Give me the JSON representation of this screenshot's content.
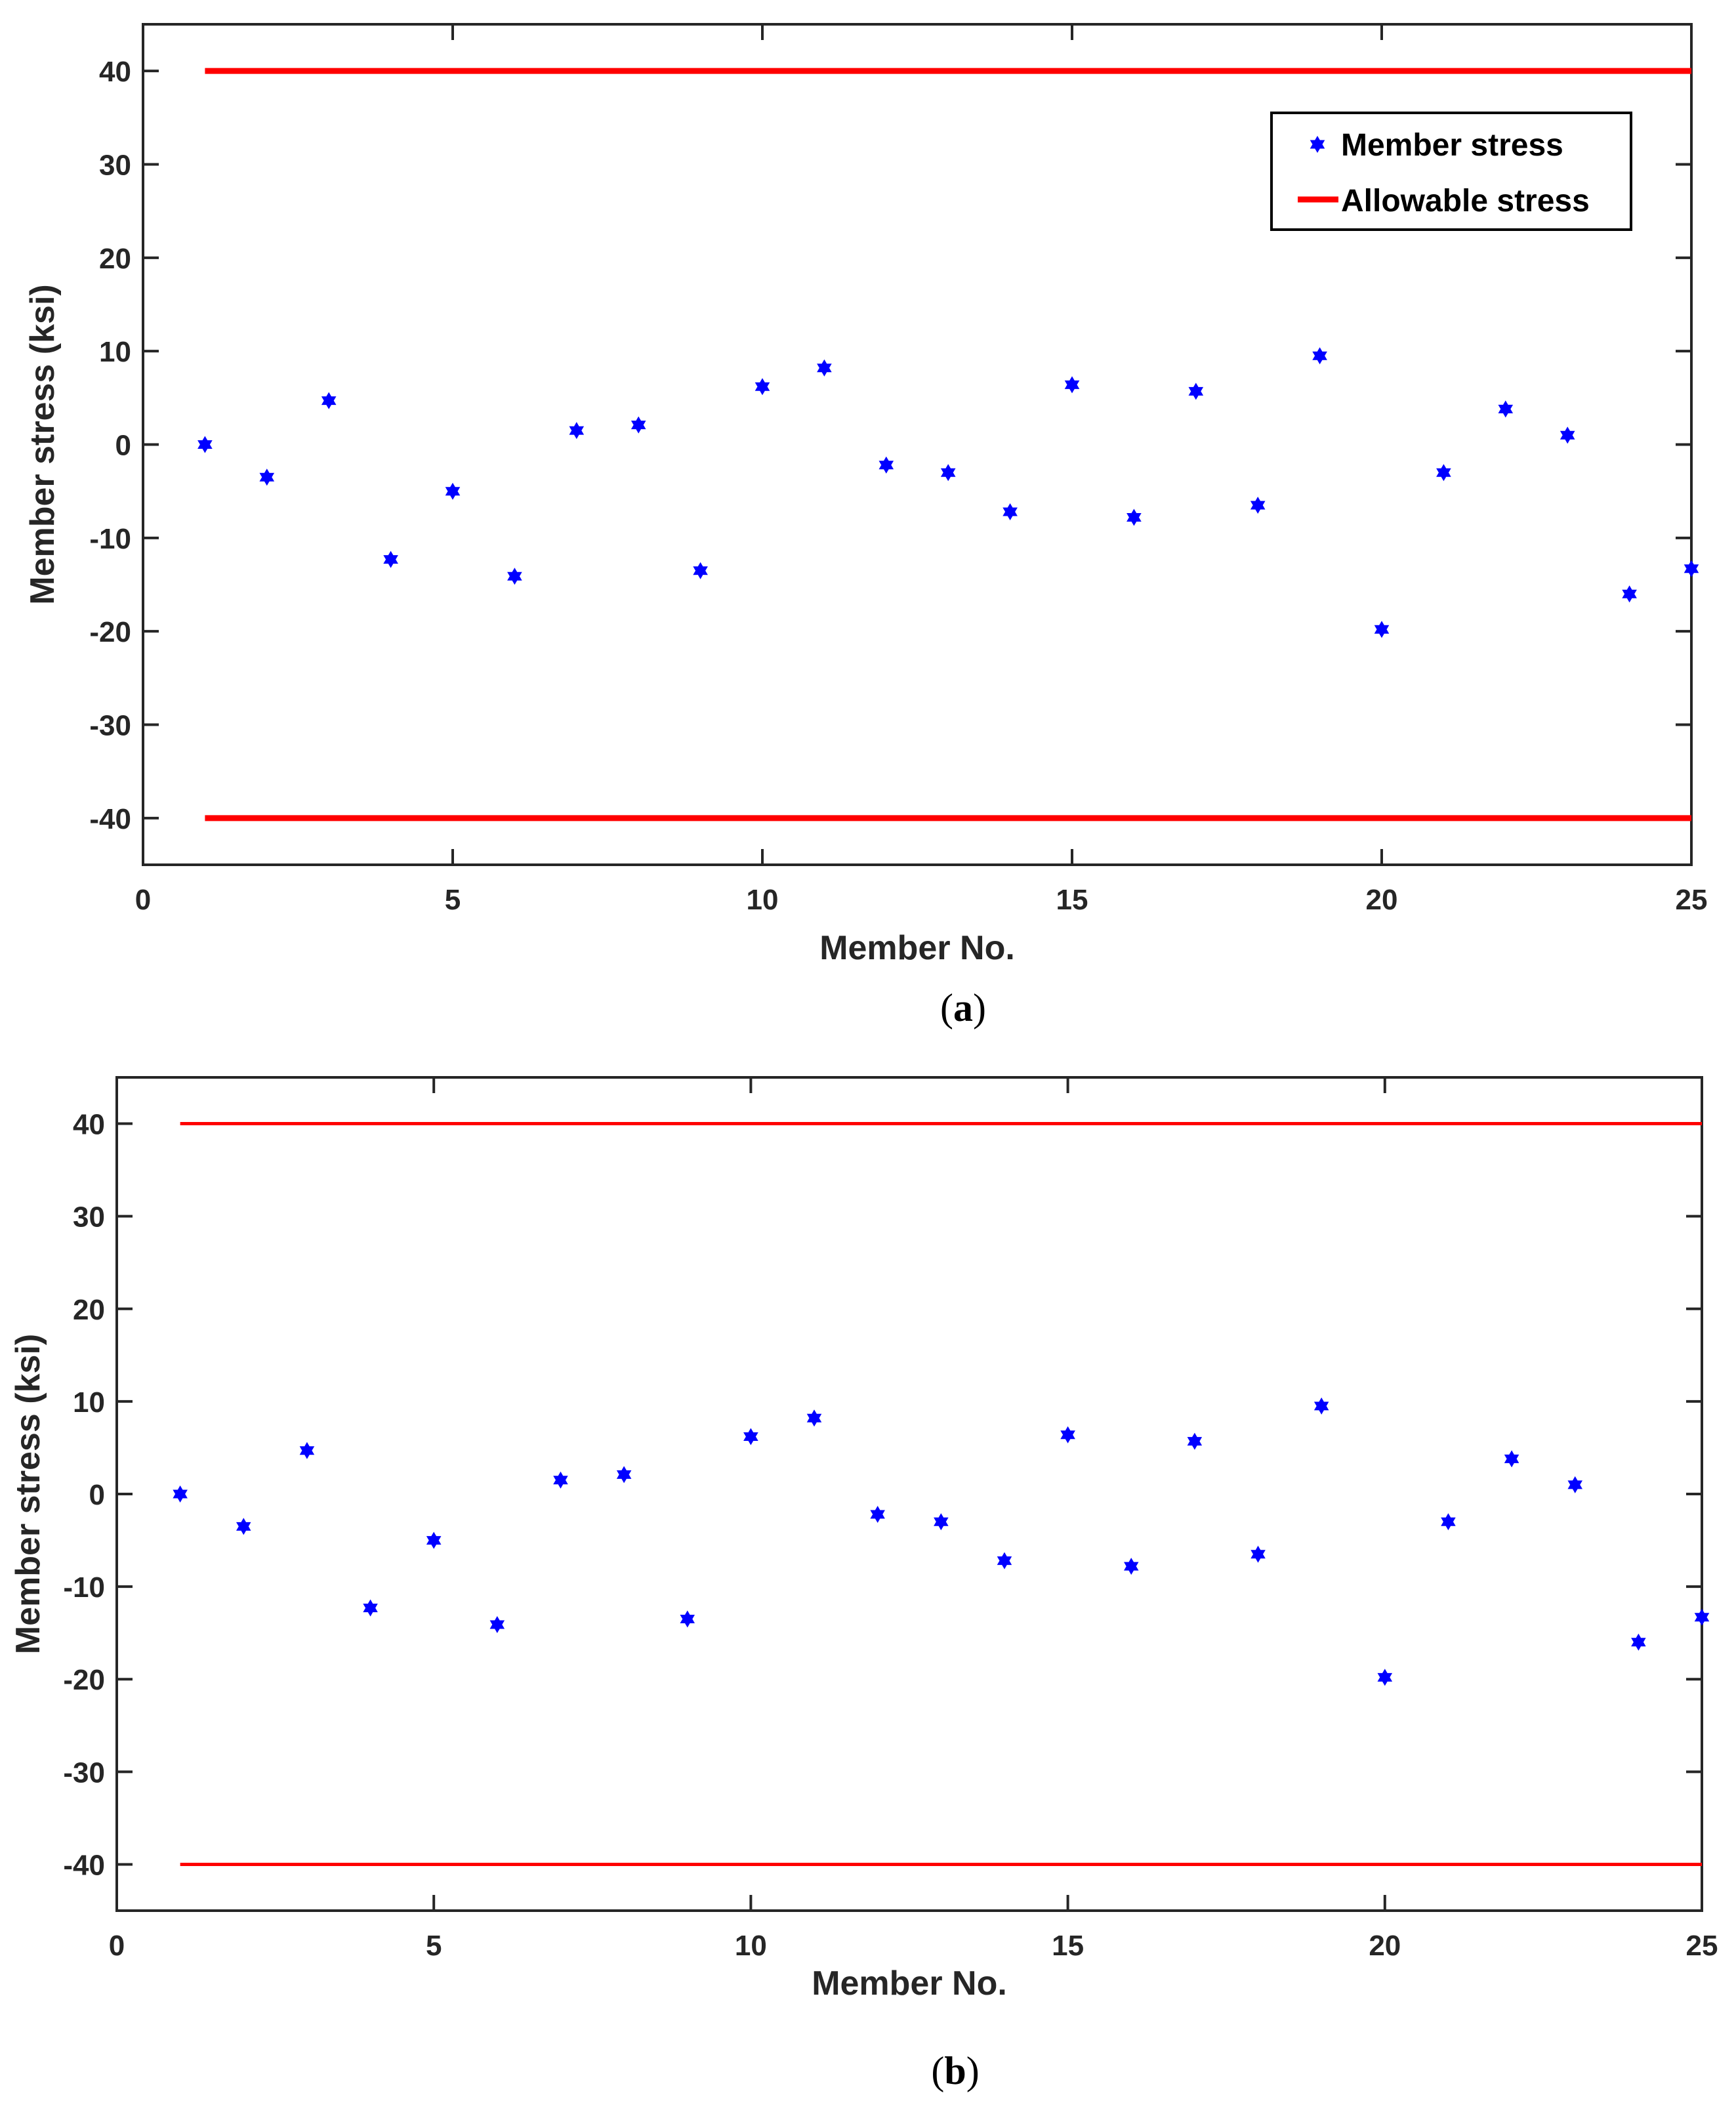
{
  "colors": {
    "marker": "#0000ff",
    "limit": "#ff0000",
    "axis": "#262626"
  },
  "chart_data": [
    {
      "id": "a",
      "type": "scatter",
      "caption_open": "(",
      "caption_letter": "a",
      "caption_close": ")",
      "xlabel": "Member No.",
      "ylabel": "Member stress (ksi)",
      "xlim": [
        0,
        25
      ],
      "ylim": [
        -45,
        45
      ],
      "xticks": [
        0,
        5,
        10,
        15,
        20,
        25
      ],
      "yticks": [
        -40,
        -30,
        -20,
        -10,
        0,
        10,
        20,
        30,
        40
      ],
      "legend": {
        "position": "top-right",
        "entries": [
          "Member stress",
          "Allowable stress"
        ]
      },
      "series": [
        {
          "name": "Member stress",
          "marker": "hexagram",
          "x": [
            1,
            2,
            3,
            4,
            5,
            6,
            7,
            8,
            9,
            10,
            11,
            12,
            13,
            14,
            15,
            16,
            17,
            18,
            19,
            20,
            21,
            22,
            23,
            24,
            25
          ],
          "values": [
            0,
            -3.5,
            4.7,
            -12.3,
            -5,
            -14.1,
            1.5,
            2.1,
            -13.5,
            6.2,
            8.2,
            -2.2,
            -3,
            -7.2,
            6.4,
            -7.8,
            5.7,
            -6.5,
            9.5,
            -19.8,
            -3,
            3.8,
            1,
            -16,
            -13.3
          ]
        },
        {
          "name": "Allowable stress",
          "type": "hline",
          "x_range": [
            1,
            25
          ],
          "values": [
            40,
            -40
          ],
          "thick": true
        }
      ]
    },
    {
      "id": "b",
      "type": "scatter",
      "caption_open": "(",
      "caption_letter": "b",
      "caption_close": ")",
      "xlabel": "Member No.",
      "ylabel": "Member stress (ksi)",
      "xlim": [
        0,
        25
      ],
      "ylim": [
        -45,
        45
      ],
      "xticks": [
        0,
        5,
        10,
        15,
        20,
        25
      ],
      "yticks": [
        -40,
        -30,
        -20,
        -10,
        0,
        10,
        20,
        30,
        40
      ],
      "series": [
        {
          "name": "Member stress",
          "marker": "hexagram",
          "x": [
            1,
            2,
            3,
            4,
            5,
            6,
            7,
            8,
            9,
            10,
            11,
            12,
            13,
            14,
            15,
            16,
            17,
            18,
            19,
            20,
            21,
            22,
            23,
            24,
            25
          ],
          "values": [
            0,
            -3.5,
            4.7,
            -12.3,
            -5,
            -14.1,
            1.5,
            2.1,
            -13.5,
            6.2,
            8.2,
            -2.2,
            -3,
            -7.2,
            6.4,
            -7.8,
            5.7,
            -6.5,
            9.5,
            -19.8,
            -3,
            3.8,
            1,
            -16,
            -13.3
          ]
        },
        {
          "name": "Allowable stress",
          "type": "hline",
          "x_range": [
            1,
            25
          ],
          "values": [
            40,
            -40
          ],
          "thick": false
        }
      ]
    }
  ]
}
